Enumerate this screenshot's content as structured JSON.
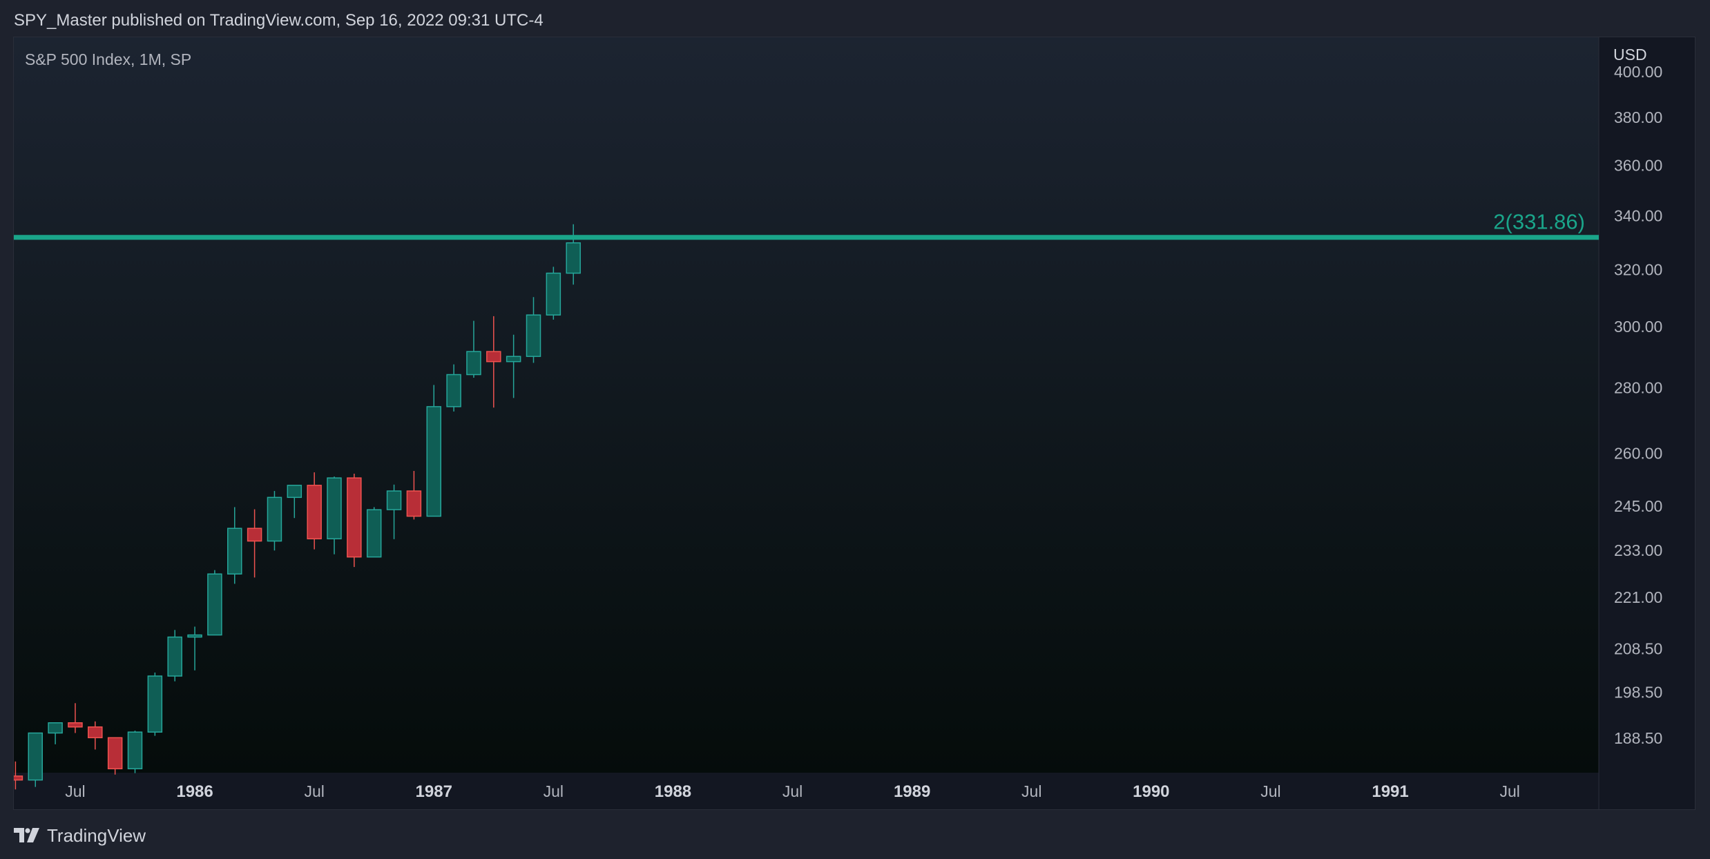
{
  "header": {
    "publisher_line": "SPY_Master published on TradingView.com, Sep 16, 2022 09:31 UTC-4"
  },
  "chart": {
    "legend": "S&P 500 Index, 1M, SP",
    "currency": "USD"
  },
  "footer": {
    "brand": "TradingView"
  },
  "colors": {
    "up": "#26a69a",
    "up_body": "#0f5e55",
    "down": "#ef5350",
    "down_body": "#b82e37",
    "level_line": "#1aa58a",
    "axis_text": "#b2b5be",
    "bg_top": "#1c2431",
    "bg_bottom": "#050c0b"
  },
  "chart_data": {
    "type": "candlestick",
    "symbol": "S&P 500 Index",
    "interval": "1M",
    "exchange": "SP",
    "y_scale": "log",
    "y_ticks": [
      "188.50",
      "198.50",
      "208.50",
      "221.00",
      "233.00",
      "245.00",
      "260.00",
      "280.00",
      "300.00",
      "320.00",
      "340.00",
      "360.00",
      "380.00",
      "400.00"
    ],
    "x_ticks": [
      {
        "label": "Jul",
        "date": "1985-07",
        "bold": false
      },
      {
        "label": "1986",
        "date": "1986-01",
        "bold": true
      },
      {
        "label": "Jul",
        "date": "1986-07",
        "bold": false
      },
      {
        "label": "1987",
        "date": "1987-01",
        "bold": true
      },
      {
        "label": "Jul",
        "date": "1987-07",
        "bold": false
      },
      {
        "label": "1988",
        "date": "1988-01",
        "bold": true
      },
      {
        "label": "Jul",
        "date": "1988-07",
        "bold": false
      },
      {
        "label": "1989",
        "date": "1989-01",
        "bold": true
      },
      {
        "label": "Jul",
        "date": "1989-07",
        "bold": false
      },
      {
        "label": "1990",
        "date": "1990-01",
        "bold": true
      },
      {
        "label": "Jul",
        "date": "1990-07",
        "bold": false
      },
      {
        "label": "1991",
        "date": "1991-01",
        "bold": true
      },
      {
        "label": "Jul",
        "date": "1991-07",
        "bold": false
      }
    ],
    "horizontal_level": {
      "label": "2(331.86)",
      "value": 331.86
    },
    "candles": [
      {
        "date": "1985-04",
        "open": 180.6,
        "high": 183.6,
        "low": 177.9,
        "close": 179.8
      },
      {
        "date": "1985-05",
        "open": 179.8,
        "high": 189.6,
        "low": 178.4,
        "close": 189.6
      },
      {
        "date": "1985-06",
        "open": 189.6,
        "high": 191.9,
        "low": 187.2,
        "close": 191.8
      },
      {
        "date": "1985-07",
        "open": 191.8,
        "high": 196.1,
        "low": 189.6,
        "close": 190.9
      },
      {
        "date": "1985-08",
        "open": 190.9,
        "high": 192.1,
        "low": 186.1,
        "close": 188.6
      },
      {
        "date": "1985-09",
        "open": 188.6,
        "high": 188.6,
        "low": 180.9,
        "close": 182.1
      },
      {
        "date": "1985-10",
        "open": 182.1,
        "high": 190.1,
        "low": 181.2,
        "close": 189.8
      },
      {
        "date": "1985-11",
        "open": 189.8,
        "high": 203.0,
        "low": 189.0,
        "close": 202.2
      },
      {
        "date": "1985-12",
        "open": 202.2,
        "high": 213.0,
        "low": 201.0,
        "close": 211.3
      },
      {
        "date": "1986-01",
        "open": 211.3,
        "high": 213.8,
        "low": 203.5,
        "close": 211.8
      },
      {
        "date": "1986-02",
        "open": 211.8,
        "high": 227.9,
        "low": 211.8,
        "close": 226.9
      },
      {
        "date": "1986-03",
        "open": 226.9,
        "high": 244.7,
        "low": 224.4,
        "close": 238.9
      },
      {
        "date": "1986-04",
        "open": 238.9,
        "high": 244.1,
        "low": 226.0,
        "close": 235.5
      },
      {
        "date": "1986-05",
        "open": 235.5,
        "high": 249.2,
        "low": 233.0,
        "close": 247.4
      },
      {
        "date": "1986-06",
        "open": 247.4,
        "high": 250.6,
        "low": 241.7,
        "close": 250.8
      },
      {
        "date": "1986-07",
        "open": 250.8,
        "high": 254.5,
        "low": 233.3,
        "close": 236.1
      },
      {
        "date": "1986-08",
        "open": 236.1,
        "high": 253.3,
        "low": 232.0,
        "close": 252.9
      },
      {
        "date": "1986-09",
        "open": 252.9,
        "high": 254.1,
        "low": 228.7,
        "close": 231.3
      },
      {
        "date": "1986-10",
        "open": 231.3,
        "high": 244.7,
        "low": 231.3,
        "close": 243.98
      },
      {
        "date": "1986-11",
        "open": 244.0,
        "high": 251.0,
        "low": 236.0,
        "close": 249.2
      },
      {
        "date": "1986-12",
        "open": 249.2,
        "high": 254.9,
        "low": 241.3,
        "close": 242.2
      },
      {
        "date": "1987-01",
        "open": 242.2,
        "high": 280.9,
        "low": 242.2,
        "close": 274.1
      },
      {
        "date": "1987-02",
        "open": 274.1,
        "high": 287.5,
        "low": 272.6,
        "close": 284.2
      },
      {
        "date": "1987-03",
        "open": 284.2,
        "high": 302.0,
        "low": 283.2,
        "close": 291.7
      },
      {
        "date": "1987-04",
        "open": 291.7,
        "high": 303.6,
        "low": 273.8,
        "close": 288.4
      },
      {
        "date": "1987-05",
        "open": 288.4,
        "high": 297.3,
        "low": 276.8,
        "close": 290.1
      },
      {
        "date": "1987-06",
        "open": 290.1,
        "high": 310.2,
        "low": 288.0,
        "close": 304.0
      },
      {
        "date": "1987-07",
        "open": 304.0,
        "high": 321.0,
        "low": 302.4,
        "close": 318.7
      },
      {
        "date": "1987-08",
        "open": 318.7,
        "high": 336.8,
        "low": 314.6,
        "close": 329.8
      }
    ]
  }
}
